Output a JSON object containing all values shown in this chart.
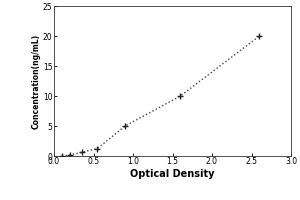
{
  "title": "",
  "xlabel": "Optical Density",
  "ylabel": "Concentration(ng/mL)",
  "x_data": [
    0.1,
    0.2,
    0.35,
    0.55,
    0.9,
    1.6,
    2.6
  ],
  "y_data": [
    0.0,
    0.156,
    0.625,
    1.25,
    5.0,
    10.0,
    20.0
  ],
  "xlim": [
    0,
    3
  ],
  "ylim": [
    0,
    25
  ],
  "xticks": [
    0,
    0.5,
    1,
    1.5,
    2,
    2.5,
    3
  ],
  "yticks": [
    0,
    5,
    10,
    15,
    20,
    25
  ],
  "line_color": "#444444",
  "marker_color": "#222222",
  "background_color": "#ffffff",
  "line_style": "dotted",
  "marker_style": "+",
  "tick_labelsize": 5.5,
  "xlabel_fontsize": 7,
  "ylabel_fontsize": 5.5,
  "linewidth": 1.0,
  "marker_size": 25
}
